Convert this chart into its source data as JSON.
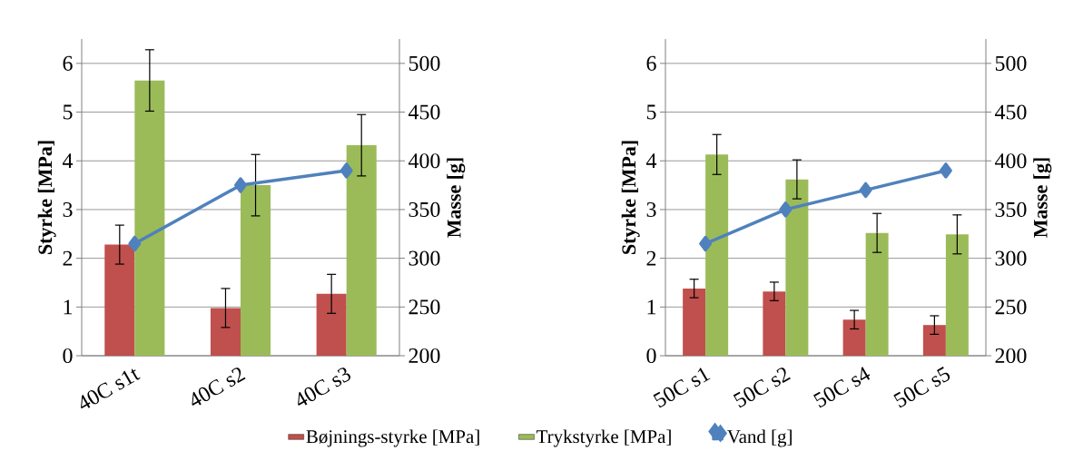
{
  "chart_data": [
    {
      "type": "bar",
      "categories": [
        "40C s1t",
        "40C s2",
        "40C s3"
      ],
      "ylabel": "Styrke [MPa]",
      "y2label": "Masse [g]",
      "ylim": [
        0,
        6.5
      ],
      "yticks": [
        0,
        1,
        2,
        3,
        4,
        5,
        6
      ],
      "y2lim": [
        200,
        525
      ],
      "y2ticks": [
        200,
        250,
        300,
        350,
        400,
        450,
        500
      ],
      "grid": "y",
      "legend": "bottom",
      "marker": "diamond",
      "series": [
        {
          "name": "Bøjnings-styrke [MPa]",
          "color": "#c0504d",
          "values": [
            2.28,
            0.98,
            1.27
          ],
          "errors": [
            0.4,
            0.4,
            0.4
          ]
        },
        {
          "name": "Trykstyrke [MPa]",
          "color": "#9bbb59",
          "values": [
            5.65,
            3.5,
            4.32
          ],
          "errors": [
            0.63,
            0.63,
            0.63
          ]
        },
        {
          "name": "Vand [g]",
          "type": "line",
          "axis": "y2",
          "color": "#4f81bd",
          "values": [
            315,
            375,
            390
          ]
        }
      ]
    },
    {
      "type": "bar",
      "categories": [
        "50C s1",
        "50C s2",
        "50C s4",
        "50C s5"
      ],
      "ylabel": "Styrke [MPa]",
      "y2label": "Masse [g]",
      "ylim": [
        0,
        6.5
      ],
      "yticks": [
        0,
        1,
        2,
        3,
        4,
        5,
        6
      ],
      "y2lim": [
        200,
        525
      ],
      "y2ticks": [
        200,
        250,
        300,
        350,
        400,
        450,
        500
      ],
      "grid": "y",
      "marker": "diamond",
      "series": [
        {
          "color": "#c0504d",
          "values": [
            1.38,
            1.32,
            0.74,
            0.63
          ],
          "errors": [
            0.19,
            0.19,
            0.19,
            0.19
          ]
        },
        {
          "color": "#9bbb59",
          "values": [
            4.13,
            3.62,
            2.52,
            2.49
          ],
          "errors": [
            0.41,
            0.4,
            0.4,
            0.4
          ]
        },
        {
          "type": "line",
          "axis": "y2",
          "color": "#4f81bd",
          "values": [
            315,
            350,
            370,
            390
          ]
        }
      ]
    }
  ]
}
